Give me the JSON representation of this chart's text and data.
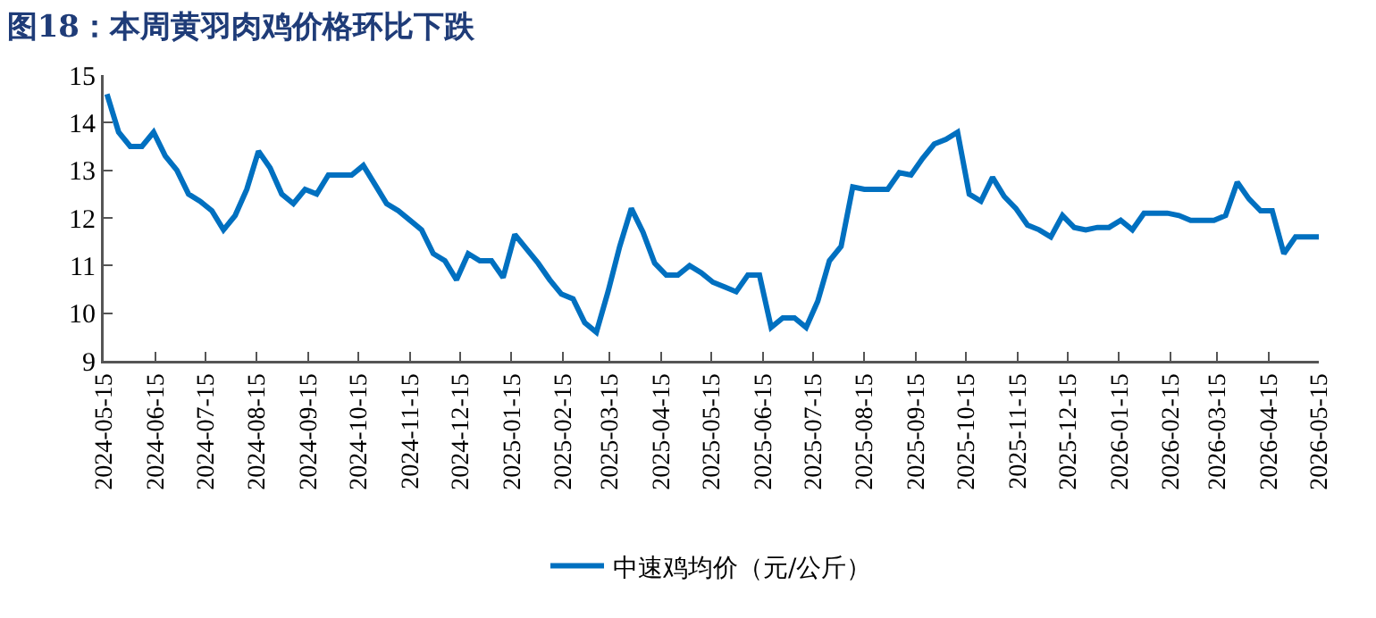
{
  "chart_data": {
    "type": "line",
    "title": "图18：本周黄羽肉鸡价格环比下跌",
    "x": [
      "2024-05-17",
      "2024-05-24",
      "2024-05-31",
      "2024-06-07",
      "2024-06-14",
      "2024-06-21",
      "2024-06-28",
      "2024-07-05",
      "2024-07-12",
      "2024-07-19",
      "2024-07-26",
      "2024-08-02",
      "2024-08-09",
      "2024-08-16",
      "2024-08-23",
      "2024-08-30",
      "2024-09-06",
      "2024-09-13",
      "2024-09-20",
      "2024-09-27",
      "2024-10-04",
      "2024-10-11",
      "2024-10-18",
      "2024-10-25",
      "2024-11-01",
      "2024-11-08",
      "2024-11-15",
      "2024-11-22",
      "2024-11-29",
      "2024-12-06",
      "2024-12-13",
      "2024-12-20",
      "2024-12-27",
      "2025-01-03",
      "2025-01-10",
      "2025-01-17",
      "2025-01-24",
      "2025-01-31",
      "2025-02-07",
      "2025-02-14",
      "2025-02-21",
      "2025-02-28",
      "2025-03-07",
      "2025-03-14",
      "2025-03-21",
      "2025-03-28",
      "2025-04-04",
      "2025-04-11",
      "2025-04-18",
      "2025-04-25",
      "2025-05-02",
      "2025-05-09",
      "2025-05-16",
      "2025-05-23",
      "2025-05-30",
      "2025-06-06",
      "2025-06-13",
      "2025-06-20",
      "2025-06-27",
      "2025-07-04",
      "2025-07-11",
      "2025-07-18",
      "2025-07-25",
      "2025-08-01",
      "2025-08-08",
      "2025-08-15",
      "2025-08-22",
      "2025-08-29",
      "2025-09-05",
      "2025-09-12",
      "2025-09-19",
      "2025-09-26",
      "2025-10-03",
      "2025-10-10",
      "2025-10-17",
      "2025-10-24",
      "2025-10-31",
      "2025-11-07",
      "2025-11-14",
      "2025-11-21",
      "2025-11-28",
      "2025-12-05",
      "2025-12-12",
      "2025-12-19",
      "2025-12-26",
      "2026-01-02",
      "2026-01-09",
      "2026-01-16",
      "2026-01-23",
      "2026-01-30",
      "2026-02-06",
      "2026-02-13",
      "2026-02-20",
      "2026-02-27",
      "2026-03-06",
      "2026-03-13",
      "2026-03-20",
      "2026-03-27",
      "2026-04-03",
      "2026-04-10",
      "2026-04-17",
      "2026-04-24",
      "2026-05-01",
      "2026-05-08",
      "2026-05-15"
    ],
    "series": [
      {
        "name": "中速鸡均价（元/公斤）",
        "color": "#0070c0",
        "values": [
          14.6,
          13.8,
          13.5,
          13.5,
          13.8,
          13.3,
          13.0,
          12.5,
          12.35,
          12.15,
          11.75,
          12.05,
          12.6,
          13.4,
          13.05,
          12.5,
          12.3,
          12.6,
          12.5,
          12.9,
          12.9,
          12.9,
          13.1,
          12.7,
          12.3,
          12.15,
          11.95,
          11.75,
          11.25,
          11.1,
          10.7,
          11.25,
          11.1,
          11.1,
          10.75,
          11.65,
          11.35,
          11.05,
          10.7,
          10.4,
          10.3,
          9.8,
          9.6,
          10.45,
          11.4,
          12.2,
          11.7,
          11.05,
          10.8,
          10.8,
          11.0,
          10.85,
          10.65,
          10.55,
          10.45,
          10.8,
          10.8,
          9.7,
          9.9,
          9.9,
          9.7,
          10.25,
          11.1,
          11.4,
          12.65,
          12.6,
          12.6,
          12.6,
          12.95,
          12.9,
          13.25,
          13.55,
          13.65,
          13.8,
          12.5,
          12.35,
          12.85,
          12.45,
          12.2,
          11.85,
          11.75,
          11.6,
          12.05,
          11.8,
          11.75,
          11.8,
          11.8,
          11.95,
          11.75,
          12.1,
          12.1,
          12.1,
          12.05,
          11.95,
          11.95,
          11.95,
          12.05,
          12.75,
          12.4,
          12.15,
          12.15,
          11.25,
          11.6,
          11.6,
          11.6
        ]
      }
    ],
    "xlim": [
      "2024-05-15",
      "2026-05-15"
    ],
    "xticks": [
      "2024-05-15",
      "2024-06-15",
      "2024-07-15",
      "2024-08-15",
      "2024-09-15",
      "2024-10-15",
      "2024-11-15",
      "2024-12-15",
      "2025-01-15",
      "2025-02-15",
      "2025-03-15",
      "2025-04-15",
      "2025-05-15",
      "2025-06-15",
      "2025-07-15",
      "2025-08-15",
      "2025-09-15",
      "2025-10-15",
      "2025-11-15",
      "2025-12-15",
      "2026-01-15",
      "2026-02-15",
      "2026-03-15",
      "2026-04-15",
      "2026-05-15"
    ],
    "ylim": [
      9,
      15
    ],
    "yticks": [
      9,
      10,
      11,
      12,
      13,
      14,
      15
    ],
    "grid": false,
    "legend": "bottom",
    "marker": "none",
    "line_style": "solid"
  }
}
